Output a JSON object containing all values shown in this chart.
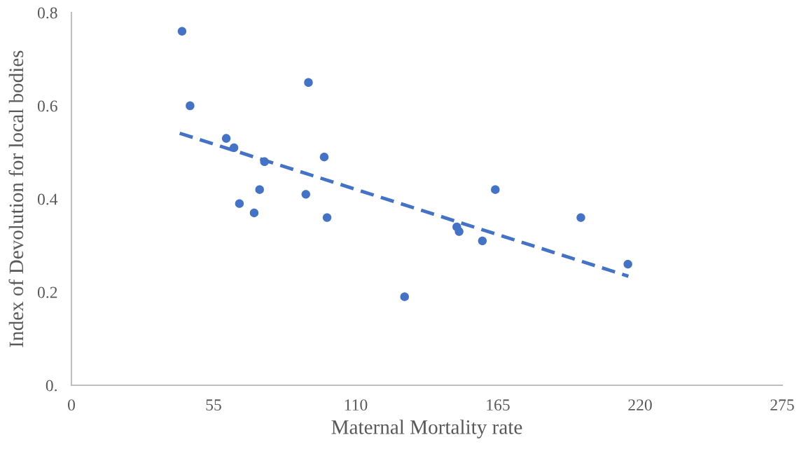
{
  "chart_data": {
    "type": "scatter",
    "xlabel": "Maternal Mortality rate",
    "ylabel": "Index of Devolution for local bodies",
    "xlim": [
      0,
      275
    ],
    "xticks": [
      0,
      55,
      110,
      165,
      220,
      275
    ],
    "ylim": [
      0,
      0.8
    ],
    "yticks": [
      {
        "value": 0,
        "label": "0."
      },
      0.2,
      0.4,
      0.6,
      0.8
    ],
    "grid": false,
    "legend": false,
    "marker": "circle",
    "series": [
      {
        "color": "#4472c4",
        "x": [
          42.8,
          45.9,
          59.9,
          62.9,
          74.7,
          72.8,
          65.0,
          70.7,
          91.7,
          97.8,
          90.7,
          98.9,
          128.9,
          149.1,
          150.0,
          159.0,
          164.0,
          197.1,
          215.3
        ],
        "values": [
          0.76,
          0.6,
          0.53,
          0.51,
          0.48,
          0.42,
          0.39,
          0.37,
          0.65,
          0.49,
          0.41,
          0.36,
          0.19,
          0.34,
          0.33,
          0.31,
          0.42,
          0.36,
          0.26
        ]
      },
      {
        "type": "line",
        "color": "#4472c4",
        "line_style": "dashed",
        "marker": "none",
        "x": [
          41.9,
          215.5
        ],
        "values": [
          0.541,
          0.234
        ]
      }
    ]
  }
}
